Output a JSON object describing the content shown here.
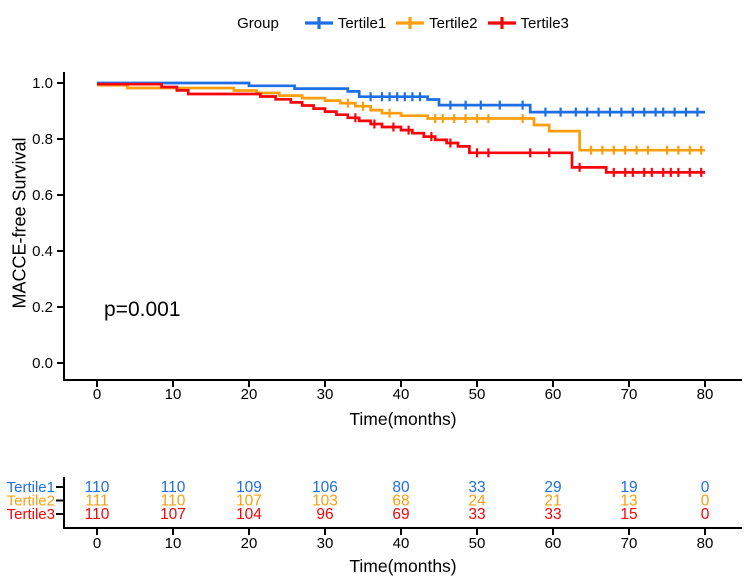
{
  "colors": {
    "tertile1": "#1E6FE6",
    "tertile2": "#FF9E0D",
    "tertile3": "#F9040A",
    "axis": "#000000"
  },
  "legend": {
    "title": "Group",
    "items": [
      {
        "label": "Tertile1",
        "color": "#1E6FE6"
      },
      {
        "label": "Tertile2",
        "color": "#FF9E0D"
      },
      {
        "label": "Tertile3",
        "color": "#F9040A"
      }
    ]
  },
  "chart_data": {
    "type": "line",
    "subtype": "kaplan-meier-survival",
    "title": "",
    "xlabel": "Time(months)",
    "ylabel": "MACCE-free Survival",
    "annotation": "p=0.001",
    "xlim": [
      0,
      80
    ],
    "ylim": [
      0,
      1
    ],
    "grid": false,
    "legend_position": "top",
    "xticks": [
      0,
      10,
      20,
      30,
      40,
      50,
      60,
      70,
      80
    ],
    "yticks": [
      {
        "value": 1.0,
        "label": "1.0"
      },
      {
        "value": 0.8,
        "label": "0.8"
      },
      {
        "value": 0.6,
        "label": "0.6"
      },
      {
        "value": 0.4,
        "label": "0.4"
      },
      {
        "value": 0.2,
        "label": "0.2"
      },
      {
        "value": 0.0,
        "label": "0.0"
      }
    ],
    "series": [
      {
        "name": "Tertile1",
        "color": "#1E6FE6",
        "steps": [
          [
            0,
            1
          ],
          [
            20,
            1
          ],
          [
            20,
            0.99
          ],
          [
            26,
            0.99
          ],
          [
            26,
            0.98
          ],
          [
            33,
            0.98
          ],
          [
            33,
            0.97
          ],
          [
            34.5,
            0.97
          ],
          [
            34.5,
            0.951
          ],
          [
            43.5,
            0.951
          ],
          [
            43.5,
            0.941
          ],
          [
            45,
            0.941
          ],
          [
            45,
            0.921
          ],
          [
            57,
            0.921
          ],
          [
            57,
            0.896
          ],
          [
            80,
            0.896
          ]
        ],
        "censor_times": [
          36,
          37.5,
          38.5,
          39.5,
          40.5,
          41.5,
          42.5,
          46.5,
          48.5,
          50.5,
          53,
          56,
          59,
          61,
          63,
          64.5,
          66,
          67.5,
          69,
          70.5,
          72,
          73.5,
          74.5,
          76,
          77.5,
          79
        ]
      },
      {
        "name": "Tertile2",
        "color": "#FF9E0D",
        "steps": [
          [
            0,
            1
          ],
          [
            4,
            1
          ],
          [
            4,
            0.99
          ],
          [
            18,
            0.99
          ],
          [
            18,
            0.981
          ],
          [
            21,
            0.981
          ],
          [
            21,
            0.972
          ],
          [
            24,
            0.972
          ],
          [
            24,
            0.963
          ],
          [
            27,
            0.963
          ],
          [
            27,
            0.954
          ],
          [
            30,
            0.954
          ],
          [
            30,
            0.945
          ],
          [
            32,
            0.945
          ],
          [
            32,
            0.936
          ],
          [
            34,
            0.936
          ],
          [
            34,
            0.925
          ],
          [
            36,
            0.925
          ],
          [
            36,
            0.911
          ],
          [
            37.5,
            0.911
          ],
          [
            37.5,
            0.9
          ],
          [
            40,
            0.9
          ],
          [
            40,
            0.891
          ],
          [
            43.5,
            0.891
          ],
          [
            43.5,
            0.881
          ],
          [
            57.5,
            0.881
          ],
          [
            57.5,
            0.858
          ],
          [
            59.5,
            0.858
          ],
          [
            59.5,
            0.836
          ],
          [
            63.5,
            0.836
          ],
          [
            63.5,
            0.768
          ],
          [
            80,
            0.768
          ]
        ],
        "censor_times": [
          33,
          35,
          38.5,
          44.5,
          45.5,
          47,
          48.5,
          50,
          51.5,
          56,
          65,
          66.5,
          68,
          69.5,
          71,
          72.5,
          75,
          76.5,
          78,
          79.5
        ]
      },
      {
        "name": "Tertile3",
        "color": "#F9040A",
        "steps": [
          [
            0,
            1
          ],
          [
            8.5,
            1
          ],
          [
            8.5,
            0.99
          ],
          [
            10.5,
            0.99
          ],
          [
            10.5,
            0.978
          ],
          [
            12,
            0.978
          ],
          [
            12,
            0.965
          ],
          [
            21.5,
            0.965
          ],
          [
            21.5,
            0.956
          ],
          [
            23.5,
            0.956
          ],
          [
            23.5,
            0.946
          ],
          [
            25.5,
            0.946
          ],
          [
            25.5,
            0.935
          ],
          [
            27,
            0.935
          ],
          [
            27,
            0.924
          ],
          [
            28.5,
            0.924
          ],
          [
            28.5,
            0.913
          ],
          [
            30,
            0.913
          ],
          [
            30,
            0.902
          ],
          [
            31.5,
            0.902
          ],
          [
            31.5,
            0.891
          ],
          [
            33,
            0.891
          ],
          [
            33,
            0.88
          ],
          [
            34.5,
            0.88
          ],
          [
            34.5,
            0.869
          ],
          [
            36,
            0.869
          ],
          [
            36,
            0.858
          ],
          [
            37.5,
            0.858
          ],
          [
            37.5,
            0.847
          ],
          [
            40,
            0.847
          ],
          [
            40,
            0.836
          ],
          [
            41.5,
            0.836
          ],
          [
            41.5,
            0.825
          ],
          [
            43,
            0.825
          ],
          [
            43,
            0.813
          ],
          [
            44.5,
            0.813
          ],
          [
            44.5,
            0.801
          ],
          [
            46,
            0.801
          ],
          [
            46,
            0.79
          ],
          [
            47.5,
            0.79
          ],
          [
            47.5,
            0.778
          ],
          [
            49,
            0.778
          ],
          [
            49,
            0.755
          ],
          [
            62.5,
            0.755
          ],
          [
            62.5,
            0.703
          ],
          [
            67,
            0.703
          ],
          [
            67,
            0.685
          ],
          [
            80,
            0.685
          ]
        ],
        "censor_times": [
          34,
          36.5,
          39,
          41,
          44,
          46.5,
          50,
          51.5,
          57,
          59.5,
          63.5,
          68,
          69.5,
          70.5,
          72,
          73,
          74.5,
          75.5,
          76.5,
          78,
          79.5
        ]
      }
    ]
  },
  "risk_table": {
    "xlabel": "Time(months)",
    "columns": [
      0,
      10,
      20,
      30,
      40,
      50,
      60,
      70,
      80
    ],
    "rows": [
      {
        "label": "Tertile1",
        "color": "#1E6FE6",
        "counts": [
          110,
          110,
          109,
          106,
          80,
          33,
          29,
          19,
          0
        ]
      },
      {
        "label": "Tertile2",
        "color": "#FF9E0D",
        "counts": [
          111,
          110,
          107,
          103,
          68,
          24,
          21,
          13,
          0
        ]
      },
      {
        "label": "Tertile3",
        "color": "#F9040A",
        "counts": [
          110,
          107,
          104,
          96,
          69,
          33,
          33,
          15,
          0
        ]
      }
    ]
  }
}
